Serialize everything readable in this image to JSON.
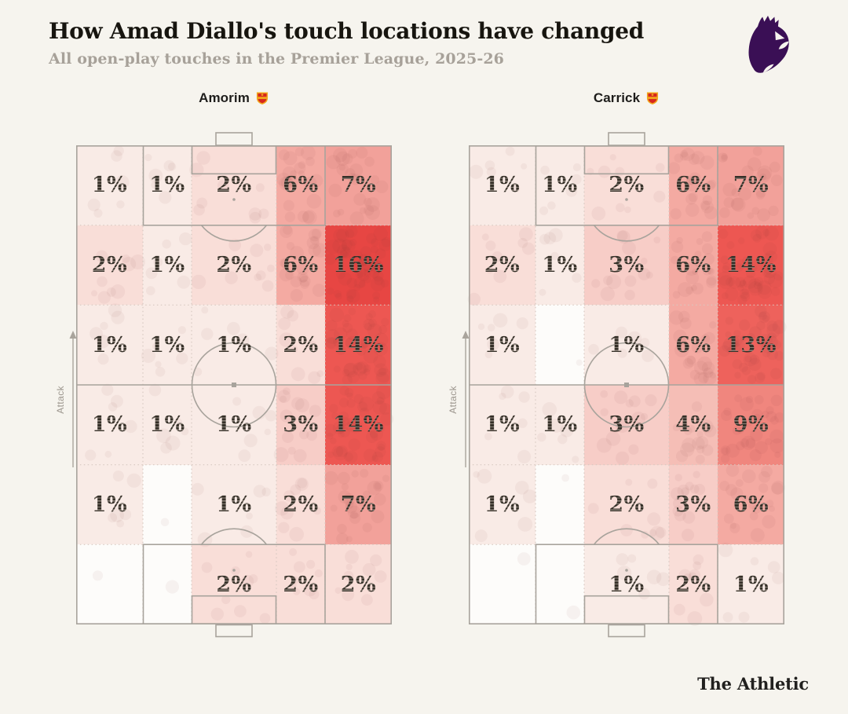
{
  "header": {
    "title": "How Amad Diallo's touch locations have changed",
    "subtitle": "All open-play touches in the Premier League, 2025-26"
  },
  "branding": {
    "premier_league_logo": "premier-league-lion-icon",
    "premier_league_purple": "#3a0f55",
    "club_crest": "manchester-united-crest-icon",
    "footer_wordmark": "The Athletic"
  },
  "attack_label": "Attack",
  "colors": {
    "background": "#f6f4ee",
    "pitch_line": "#a8a39c",
    "grid_dotted": "#d7c9c1",
    "label_text": "#3a352e",
    "scale": {
      "0": "#fdfcfa",
      "1": "#f9ebe6",
      "2": "#f9ded8",
      "3": "#f7cdc7",
      "4": "#f5beb6",
      "6": "#f4aaa2",
      "7": "#f2a19a",
      "9": "#f0867e",
      "13": "#ee625c",
      "14": "#ed5752",
      "16": "#e74643"
    }
  },
  "chart_data": {
    "type": "heatmap",
    "title": "How Amad Diallo's touch locations have changed",
    "subtitle": "All open-play touches in the Premier League, 2025-26",
    "unit": "%",
    "grid": {
      "rows": 6,
      "cols": 5,
      "orientation": "attacking-up",
      "row_order": "attacking-end-first",
      "col_fractions": [
        0.2114,
        0.1543,
        0.2686,
        0.1543,
        0.2114
      ]
    },
    "legend_position": "none",
    "gridlines": "dotted",
    "annotations": {
      "attack_direction": "up",
      "attack_label": "Attack"
    },
    "series": [
      {
        "name": "Amorim",
        "team_icon": "manchester-united-crest-icon",
        "values": [
          [
            1,
            1,
            2,
            6,
            7
          ],
          [
            2,
            1,
            2,
            6,
            16
          ],
          [
            1,
            1,
            1,
            2,
            14
          ],
          [
            1,
            1,
            1,
            3,
            14
          ],
          [
            1,
            null,
            1,
            2,
            7
          ],
          [
            null,
            null,
            2,
            2,
            2
          ]
        ]
      },
      {
        "name": "Carrick",
        "team_icon": "manchester-united-crest-icon",
        "values": [
          [
            1,
            1,
            2,
            6,
            7
          ],
          [
            2,
            1,
            3,
            6,
            14
          ],
          [
            1,
            null,
            1,
            6,
            13
          ],
          [
            1,
            1,
            3,
            4,
            9
          ],
          [
            1,
            null,
            2,
            3,
            6
          ],
          [
            null,
            null,
            1,
            2,
            1
          ]
        ]
      }
    ],
    "value_color_scale": [
      [
        0,
        "#fdfcfa"
      ],
      [
        1,
        "#f9ebe6"
      ],
      [
        2,
        "#f9ded8"
      ],
      [
        3,
        "#f7cdc7"
      ],
      [
        4,
        "#f5beb6"
      ],
      [
        6,
        "#f4aaa2"
      ],
      [
        7,
        "#f2a19a"
      ],
      [
        9,
        "#f0867e"
      ],
      [
        13,
        "#ee625c"
      ],
      [
        14,
        "#ed5752"
      ],
      [
        16,
        "#e74643"
      ]
    ]
  }
}
